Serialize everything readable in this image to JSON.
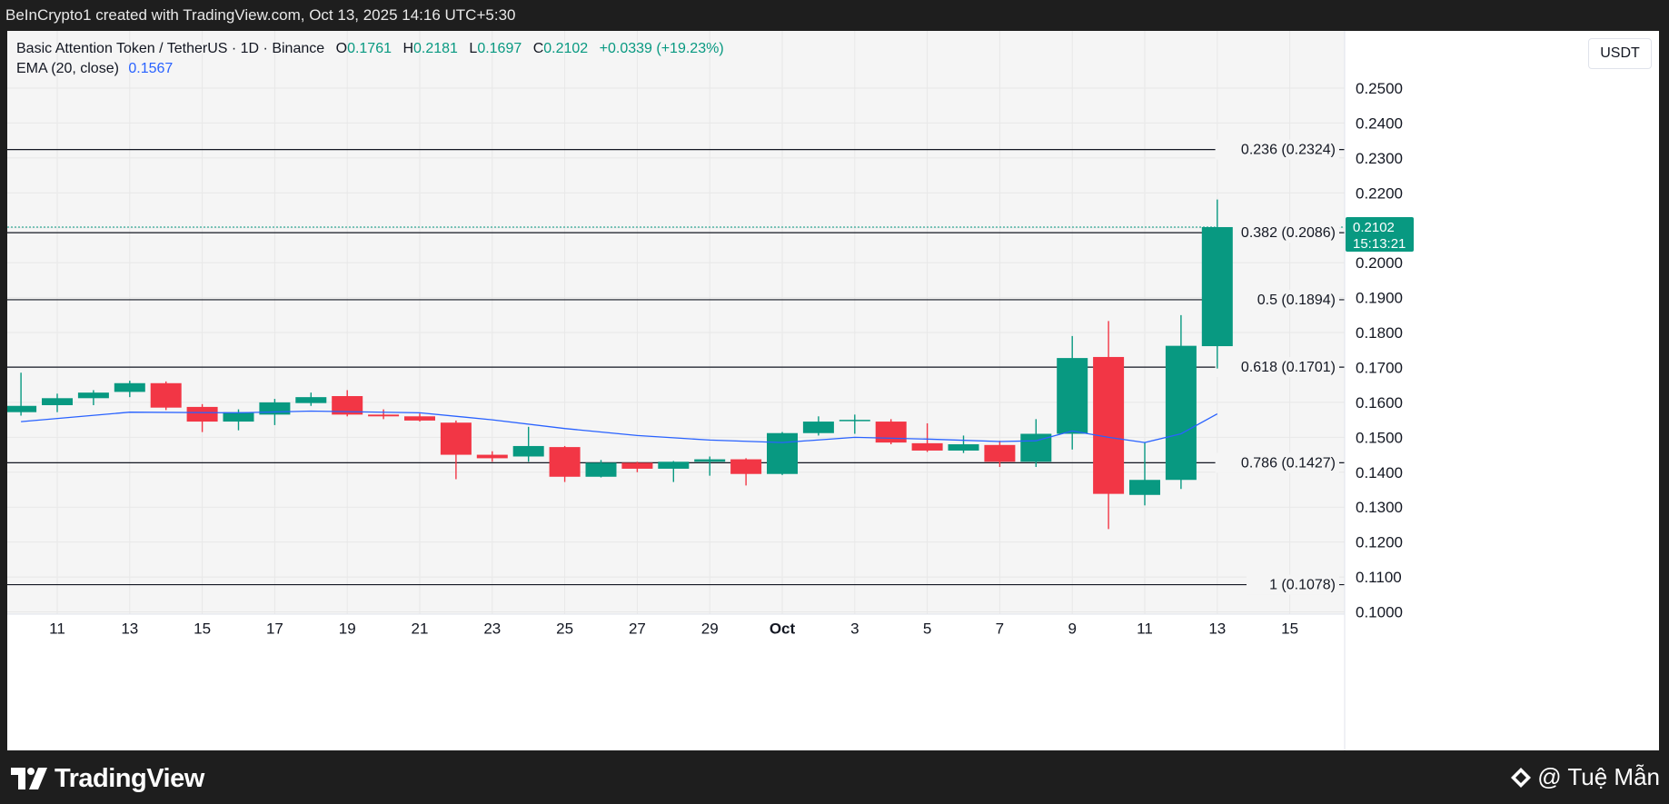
{
  "topbar": {
    "text": "BeInCrypto1 created with TradingView.com, Oct 13, 2025 14:16 UTC+5:30"
  },
  "legend": {
    "symbol": "Basic Attention Token / TetherUS · 1D · Binance",
    "o_label": "O",
    "o_value": "0.1761",
    "h_label": "H",
    "h_value": "0.2181",
    "l_label": "L",
    "l_value": "0.1697",
    "c_label": "C",
    "c_value": "0.2102",
    "change": "+0.0339 (+19.23%)",
    "ema_label": "EMA (20, close)",
    "ema_value": "0.1567"
  },
  "currency_button": "USDT",
  "price_tag": {
    "price": "0.2102",
    "countdown": "15:13:21"
  },
  "footer": {
    "brand": "TradingView",
    "watermark": "@ Tuệ Mẫn"
  },
  "colors": {
    "up": "#089981",
    "down": "#f23645",
    "ema": "#2962ff",
    "grid": "#f0f3fa",
    "fib_line": "#131722",
    "text": "#131722"
  },
  "chart_data": {
    "type": "candlestick",
    "y_axis": {
      "ylim": [
        0.1,
        0.2575
      ],
      "ticks": [
        "0.2500",
        "0.2400",
        "0.2300",
        "0.2200",
        "0.2100",
        "0.2000",
        "0.1900",
        "0.1800",
        "0.1700",
        "0.1600",
        "0.1500",
        "0.1400",
        "0.1300",
        "0.1200",
        "0.1100",
        "0.1000"
      ],
      "side": "right"
    },
    "x_axis": {
      "ticks": [
        {
          "label": "11",
          "day": 11
        },
        {
          "label": "13",
          "day": 13
        },
        {
          "label": "15",
          "day": 15
        },
        {
          "label": "17",
          "day": 17
        },
        {
          "label": "19",
          "day": 19
        },
        {
          "label": "21",
          "day": 21
        },
        {
          "label": "23",
          "day": 23
        },
        {
          "label": "25",
          "day": 25
        },
        {
          "label": "27",
          "day": 27
        },
        {
          "label": "29",
          "day": 29
        },
        {
          "label": "Oct",
          "day": 31
        },
        {
          "label": "3",
          "day": 33
        },
        {
          "label": "5",
          "day": 35
        },
        {
          "label": "7",
          "day": 37
        },
        {
          "label": "9",
          "day": 39
        },
        {
          "label": "11",
          "day": 41
        },
        {
          "label": "13",
          "day": 43
        },
        {
          "label": "15",
          "day": 45
        }
      ],
      "note": "day index counts from Sep; 31 = Oct 1"
    },
    "candles": [
      {
        "day": 10,
        "o": 0.1572,
        "h": 0.1685,
        "l": 0.1562,
        "c": 0.159
      },
      {
        "day": 11,
        "o": 0.1592,
        "h": 0.1625,
        "l": 0.1572,
        "c": 0.1612
      },
      {
        "day": 12,
        "o": 0.1612,
        "h": 0.1635,
        "l": 0.1592,
        "c": 0.1628
      },
      {
        "day": 13,
        "o": 0.163,
        "h": 0.1662,
        "l": 0.1615,
        "c": 0.1655
      },
      {
        "day": 14,
        "o": 0.1655,
        "h": 0.166,
        "l": 0.1578,
        "c": 0.1585
      },
      {
        "day": 15,
        "o": 0.1587,
        "h": 0.1595,
        "l": 0.1515,
        "c": 0.1545
      },
      {
        "day": 16,
        "o": 0.1545,
        "h": 0.158,
        "l": 0.152,
        "c": 0.1572
      },
      {
        "day": 17,
        "o": 0.1565,
        "h": 0.161,
        "l": 0.1535,
        "c": 0.16
      },
      {
        "day": 18,
        "o": 0.1598,
        "h": 0.1628,
        "l": 0.159,
        "c": 0.1615
      },
      {
        "day": 19,
        "o": 0.1618,
        "h": 0.1635,
        "l": 0.156,
        "c": 0.1565
      },
      {
        "day": 20,
        "o": 0.1565,
        "h": 0.158,
        "l": 0.1552,
        "c": 0.156
      },
      {
        "day": 21,
        "o": 0.156,
        "h": 0.1568,
        "l": 0.1545,
        "c": 0.1548
      },
      {
        "day": 22,
        "o": 0.1542,
        "h": 0.1548,
        "l": 0.138,
        "c": 0.145
      },
      {
        "day": 23,
        "o": 0.145,
        "h": 0.146,
        "l": 0.143,
        "c": 0.144
      },
      {
        "day": 24,
        "o": 0.1445,
        "h": 0.153,
        "l": 0.143,
        "c": 0.1475
      },
      {
        "day": 25,
        "o": 0.1472,
        "h": 0.1475,
        "l": 0.1372,
        "c": 0.1387
      },
      {
        "day": 26,
        "o": 0.1387,
        "h": 0.1435,
        "l": 0.1385,
        "c": 0.1427
      },
      {
        "day": 27,
        "o": 0.1427,
        "h": 0.143,
        "l": 0.14,
        "c": 0.141
      },
      {
        "day": 28,
        "o": 0.141,
        "h": 0.1432,
        "l": 0.1372,
        "c": 0.143
      },
      {
        "day": 29,
        "o": 0.143,
        "h": 0.1445,
        "l": 0.139,
        "c": 0.1437
      },
      {
        "day": 30,
        "o": 0.1437,
        "h": 0.144,
        "l": 0.1362,
        "c": 0.1395
      },
      {
        "day": 31,
        "o": 0.1395,
        "h": 0.1515,
        "l": 0.1392,
        "c": 0.1512
      },
      {
        "day": 32,
        "o": 0.1512,
        "h": 0.156,
        "l": 0.1505,
        "c": 0.1545
      },
      {
        "day": 33,
        "o": 0.1548,
        "h": 0.1565,
        "l": 0.151,
        "c": 0.155
      },
      {
        "day": 34,
        "o": 0.1545,
        "h": 0.1552,
        "l": 0.148,
        "c": 0.1485
      },
      {
        "day": 35,
        "o": 0.1483,
        "h": 0.154,
        "l": 0.1458,
        "c": 0.1462
      },
      {
        "day": 36,
        "o": 0.1462,
        "h": 0.1505,
        "l": 0.1455,
        "c": 0.148
      },
      {
        "day": 37,
        "o": 0.1478,
        "h": 0.149,
        "l": 0.1415,
        "c": 0.143
      },
      {
        "day": 38,
        "o": 0.143,
        "h": 0.1552,
        "l": 0.1415,
        "c": 0.151
      },
      {
        "day": 39,
        "o": 0.151,
        "h": 0.179,
        "l": 0.1465,
        "c": 0.1727
      },
      {
        "day": 40,
        "o": 0.173,
        "h": 0.1833,
        "l": 0.1237,
        "c": 0.1338
      },
      {
        "day": 41,
        "o": 0.1335,
        "h": 0.1485,
        "l": 0.1305,
        "c": 0.1378
      },
      {
        "day": 42,
        "o": 0.1378,
        "h": 0.185,
        "l": 0.1352,
        "c": 0.1762
      },
      {
        "day": 43,
        "o": 0.1761,
        "h": 0.2181,
        "l": 0.1697,
        "c": 0.2102
      }
    ],
    "ema": {
      "name": "EMA (20, close)",
      "points": [
        {
          "day": 10,
          "v": 0.1545
        },
        {
          "day": 13,
          "v": 0.1572
        },
        {
          "day": 16,
          "v": 0.157
        },
        {
          "day": 18,
          "v": 0.1575
        },
        {
          "day": 21,
          "v": 0.157
        },
        {
          "day": 23,
          "v": 0.155
        },
        {
          "day": 25,
          "v": 0.1525
        },
        {
          "day": 27,
          "v": 0.1505
        },
        {
          "day": 29,
          "v": 0.1492
        },
        {
          "day": 31,
          "v": 0.1485
        },
        {
          "day": 33,
          "v": 0.15
        },
        {
          "day": 35,
          "v": 0.1495
        },
        {
          "day": 37,
          "v": 0.1488
        },
        {
          "day": 38,
          "v": 0.149
        },
        {
          "day": 39,
          "v": 0.1518
        },
        {
          "day": 40,
          "v": 0.15
        },
        {
          "day": 41,
          "v": 0.1485
        },
        {
          "day": 42,
          "v": 0.151
        },
        {
          "day": 43,
          "v": 0.1567
        }
      ]
    },
    "fib_levels": [
      {
        "label": "0.236 (0.2324)",
        "value": 0.2324
      },
      {
        "label": "0.382 (0.2086)",
        "value": 0.2086
      },
      {
        "label": "0.5 (0.1894)",
        "value": 0.1894
      },
      {
        "label": "0.618 (0.1701)",
        "value": 0.1701
      },
      {
        "label": "0.786 (0.1427)",
        "value": 0.1427
      },
      {
        "label": "1 (0.1078)",
        "value": 0.1078
      }
    ],
    "last_price": 0.2102
  }
}
